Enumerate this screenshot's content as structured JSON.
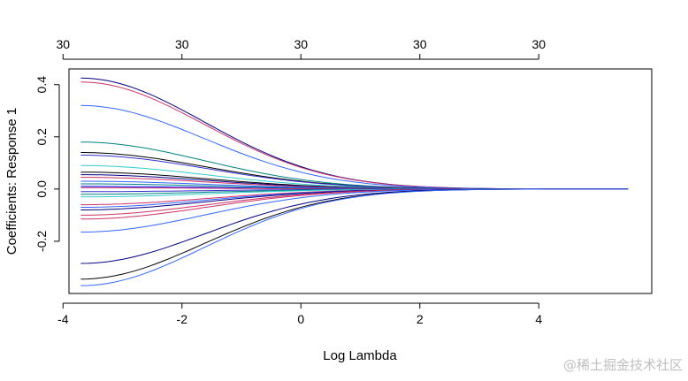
{
  "chart_data": {
    "type": "line",
    "xlabel": "Log Lambda",
    "ylabel": "Coefficients: Response 1",
    "xlim": [
      -3.9,
      5.9
    ],
    "ylim": [
      -0.4,
      0.46
    ],
    "x_ticks": [
      -4,
      -2,
      0,
      2,
      4
    ],
    "x_tick_labels": [
      "-4",
      "-2",
      "0",
      "2",
      "4"
    ],
    "y_ticks": [
      -0.2,
      0.0,
      0.2,
      0.4
    ],
    "y_tick_labels": [
      "-0.2",
      "0.0",
      "0.2",
      "0.4"
    ],
    "top_axis": {
      "ticks": [
        -4,
        -2,
        0,
        2,
        4
      ],
      "labels": [
        "30",
        "30",
        "30",
        "30",
        "30"
      ]
    },
    "grid": false,
    "legend": "none",
    "x_start": -3.7,
    "x_end": 5.5,
    "series": [
      {
        "start": 0.425,
        "decay": 1.35,
        "color": "#000080"
      },
      {
        "start": 0.41,
        "decay": 1.35,
        "color": "#cc3366"
      },
      {
        "start": 0.32,
        "decay": 1.35,
        "color": "#3366ff"
      },
      {
        "start": 0.18,
        "decay": 1.35,
        "color": "#008080"
      },
      {
        "start": 0.14,
        "decay": 1.3,
        "color": "#000000"
      },
      {
        "start": 0.13,
        "decay": 1.3,
        "color": "#3333cc"
      },
      {
        "start": 0.09,
        "decay": 1.3,
        "color": "#33cccc"
      },
      {
        "start": 0.065,
        "decay": 1.3,
        "color": "#000000"
      },
      {
        "start": 0.055,
        "decay": 1.3,
        "color": "#000080"
      },
      {
        "start": 0.045,
        "decay": 1.3,
        "color": "#cc3366"
      },
      {
        "start": 0.03,
        "decay": 1.3,
        "color": "#3366ff"
      },
      {
        "start": 0.02,
        "decay": 1.3,
        "color": "#008080"
      },
      {
        "start": 0.01,
        "decay": 1.3,
        "color": "#0000ff"
      },
      {
        "start": 0.005,
        "decay": 1.3,
        "color": "#cc3366"
      },
      {
        "start": -0.01,
        "decay": 1.3,
        "color": "#3333cc"
      },
      {
        "start": -0.02,
        "decay": 1.3,
        "color": "#008080"
      },
      {
        "start": -0.03,
        "decay": 1.3,
        "color": "#33cccc"
      },
      {
        "start": -0.06,
        "decay": 1.3,
        "color": "#cc3366"
      },
      {
        "start": -0.07,
        "decay": 1.3,
        "color": "#3366ff"
      },
      {
        "start": -0.08,
        "decay": 1.3,
        "color": "#000080"
      },
      {
        "start": -0.1,
        "decay": 1.3,
        "color": "#cc3366"
      },
      {
        "start": -0.115,
        "decay": 1.3,
        "color": "#cc3366"
      },
      {
        "start": -0.165,
        "decay": 1.35,
        "color": "#3366ff"
      },
      {
        "start": -0.285,
        "decay": 1.35,
        "color": "#000080"
      },
      {
        "start": -0.345,
        "decay": 1.35,
        "color": "#000000"
      },
      {
        "start": -0.37,
        "decay": 1.35,
        "color": "#3366ff"
      }
    ]
  },
  "watermark": "@稀土掘金技术社区"
}
